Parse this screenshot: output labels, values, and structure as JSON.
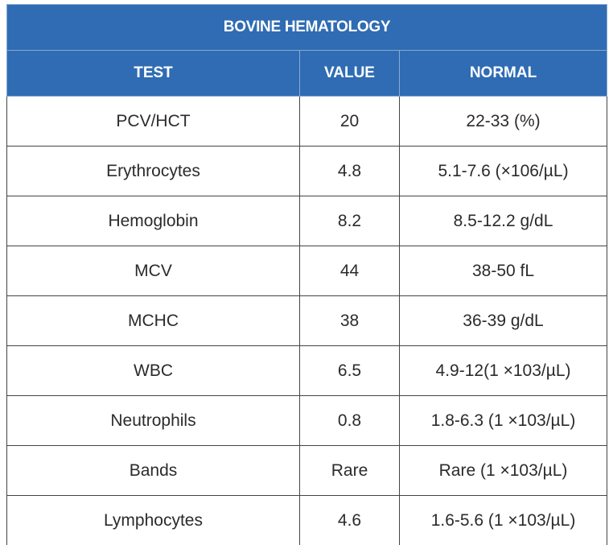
{
  "table": {
    "title": "BOVINE HEMATOLOGY",
    "headers": [
      "TEST",
      "VALUE",
      "NORMAL"
    ],
    "rows": [
      {
        "test": "PCV/HCT",
        "value": "20",
        "normal": "22-33 (%)"
      },
      {
        "test": "Erythrocytes",
        "value": "4.8",
        "normal": "5.1-7.6 (×106/µL)"
      },
      {
        "test": "Hemoglobin",
        "value": "8.2",
        "normal": "8.5-12.2  g/dL"
      },
      {
        "test": "MCV",
        "value": "44",
        "normal": "38-50 fL"
      },
      {
        "test": "MCHC",
        "value": "38",
        "normal": "36-39 g/dL"
      },
      {
        "test": "WBC",
        "value": "6.5",
        "normal": "4.9-12(1 ×103/µL)"
      },
      {
        "test": "Neutrophils",
        "value": "0.8",
        "normal": "1.8-6.3 (1 ×103/µL)"
      },
      {
        "test": "Bands",
        "value": "Rare",
        "normal": "Rare (1 ×103/µL)"
      },
      {
        "test": "Lymphocytes",
        "value": "4.6",
        "normal": "1.6-5.6 (1 ×103/µL)"
      }
    ]
  },
  "colors": {
    "header_bg": "#2f6cb3",
    "header_text": "#ffffff",
    "cell_text": "#2b2b2b",
    "border": "#444444"
  }
}
